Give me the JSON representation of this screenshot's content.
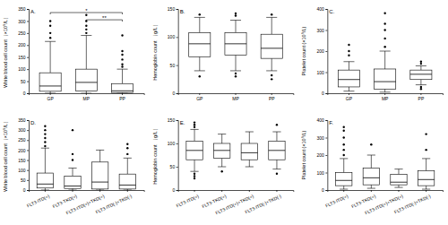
{
  "chart_data": [
    {
      "type": "box",
      "title": "A.",
      "y_label": "White blood cell count（×10⁹/L）",
      "categories": [
        "GP",
        "MP",
        "PP"
      ],
      "ylim": [
        0,
        350
      ],
      "yticks": [
        0,
        50,
        100,
        150,
        200,
        250,
        300,
        350
      ],
      "boxes": [
        {
          "whislo": 0,
          "q1": 8,
          "med": 30,
          "q3": 85,
          "whishi": 215,
          "fliers": [
            230,
            250,
            280,
            300
          ]
        },
        {
          "whislo": 0,
          "q1": 10,
          "med": 45,
          "q3": 100,
          "whishi": 240,
          "fliers": [
            250,
            265,
            280,
            300,
            325
          ]
        },
        {
          "whislo": 0,
          "q1": 3,
          "med": 10,
          "q3": 40,
          "whishi": 100,
          "fliers": [
            110,
            120,
            140,
            160,
            175,
            240
          ]
        }
      ],
      "annotations": [
        {
          "text": "*",
          "from": "GP",
          "to": "PP",
          "y": 335
        },
        {
          "text": "**",
          "from": "MP",
          "to": "PP",
          "y": 305
        }
      ]
    },
    {
      "type": "box",
      "title": "B.",
      "y_label": "Hemoglobin count （g/L）",
      "categories": [
        "GP",
        "MP",
        "PP"
      ],
      "ylim": [
        0,
        150
      ],
      "yticks": [
        0,
        50,
        100,
        150
      ],
      "boxes": [
        {
          "whislo": 40,
          "q1": 65,
          "med": 88,
          "q3": 108,
          "whishi": 135,
          "fliers": [
            30,
            140
          ]
        },
        {
          "whislo": 40,
          "q1": 68,
          "med": 88,
          "q3": 108,
          "whishi": 130,
          "fliers": [
            30,
            35,
            138,
            142
          ]
        },
        {
          "whislo": 40,
          "q1": 62,
          "med": 80,
          "q3": 105,
          "whishi": 135,
          "fliers": [
            25,
            32,
            140
          ]
        }
      ]
    },
    {
      "type": "box",
      "title": "C.",
      "y_label": "Platelet count (×10⁹/L)",
      "categories": [
        "GP",
        "MP",
        "PP"
      ],
      "ylim": [
        0,
        400
      ],
      "yticks": [
        0,
        100,
        200,
        300,
        400
      ],
      "boxes": [
        {
          "whislo": 10,
          "q1": 30,
          "med": 65,
          "q3": 110,
          "whishi": 150,
          "fliers": [
            180,
            200,
            230
          ]
        },
        {
          "whislo": 5,
          "q1": 20,
          "med": 55,
          "q3": 115,
          "whishi": 200,
          "fliers": [
            220,
            260,
            300,
            330,
            380
          ]
        },
        {
          "whislo": 40,
          "q1": 65,
          "med": 90,
          "q3": 110,
          "whishi": 130,
          "fliers": [
            20,
            30,
            140,
            150
          ]
        }
      ]
    },
    {
      "type": "box",
      "title": "D.",
      "y_label": "White blood cell count（×10⁹/L）",
      "categories": [
        "FLT3-ITD(+)",
        "FLT3-TKD(+)",
        "FLT3-ITD(+)+TKD(+)",
        "FLT3-ITD(-)+TKD(-)"
      ],
      "ylim": [
        0,
        350
      ],
      "yticks": [
        0,
        50,
        100,
        150,
        200,
        250,
        300,
        350
      ],
      "boxes": [
        {
          "whislo": 0,
          "q1": 10,
          "med": 30,
          "q3": 85,
          "whishi": 210,
          "fliers": [
            220,
            240,
            260,
            280,
            300,
            320
          ]
        },
        {
          "whislo": 0,
          "q1": 8,
          "med": 20,
          "q3": 70,
          "whishi": 110,
          "fliers": [
            150,
            180,
            300
          ]
        },
        {
          "whislo": 0,
          "q1": 5,
          "med": 40,
          "q3": 140,
          "whishi": 200,
          "fliers": []
        },
        {
          "whislo": 0,
          "q1": 5,
          "med": 25,
          "q3": 80,
          "whishi": 160,
          "fliers": [
            180,
            210,
            230
          ]
        }
      ]
    },
    {
      "type": "box",
      "title": "E.",
      "y_label": "Hemoglobin count （g/L）",
      "categories": [
        "FLT3-ITD(+)",
        "FLT3-TKD(+)",
        "FLT3-ITD(+)+TKD(+)",
        "FLT3-ITD(-)+TKD(-)"
      ],
      "ylim": [
        0,
        150
      ],
      "yticks": [
        0,
        50,
        100,
        150
      ],
      "boxes": [
        {
          "whislo": 40,
          "q1": 65,
          "med": 85,
          "q3": 105,
          "whishi": 130,
          "fliers": [
            25,
            30,
            35,
            135,
            140,
            145
          ]
        },
        {
          "whislo": 50,
          "q1": 68,
          "med": 85,
          "q3": 100,
          "whishi": 120,
          "fliers": [
            40
          ]
        },
        {
          "whislo": 50,
          "q1": 65,
          "med": 80,
          "q3": 100,
          "whishi": 125,
          "fliers": []
        },
        {
          "whislo": 45,
          "q1": 65,
          "med": 85,
          "q3": 105,
          "whishi": 125,
          "fliers": [
            35,
            140
          ]
        }
      ]
    },
    {
      "type": "box",
      "title": "F.",
      "y_label": "Platelet count (×10⁹/L)",
      "categories": [
        "FLT3-ITD(+)",
        "FLT3-TKD(+)",
        "FLT3-ITD(+)+TKD(+)",
        "FLT3-ITD(-)+TKD(-)"
      ],
      "ylim": [
        0,
        400
      ],
      "yticks": [
        0,
        100,
        200,
        300,
        400
      ],
      "boxes": [
        {
          "whislo": 5,
          "q1": 25,
          "med": 55,
          "q3": 100,
          "whishi": 180,
          "fliers": [
            200,
            230,
            260,
            300,
            340,
            360
          ]
        },
        {
          "whislo": 10,
          "q1": 30,
          "med": 70,
          "q3": 125,
          "whishi": 200,
          "fliers": [
            260
          ]
        },
        {
          "whislo": 15,
          "q1": 30,
          "med": 45,
          "q3": 90,
          "whishi": 120,
          "fliers": []
        },
        {
          "whislo": 5,
          "q1": 25,
          "med": 60,
          "q3": 110,
          "whishi": 180,
          "fliers": [
            230,
            320
          ]
        }
      ]
    }
  ]
}
